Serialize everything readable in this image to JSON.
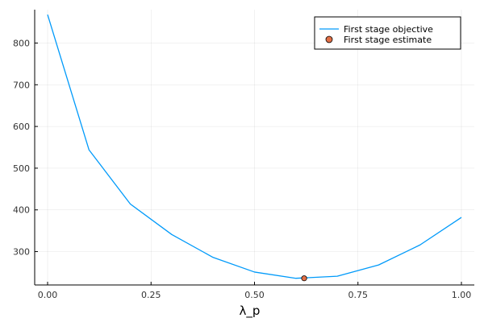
{
  "chart_data": {
    "type": "line",
    "xlabel": "λ_p",
    "ylabel": "",
    "xlim": [
      0.0,
      1.0
    ],
    "ylim": [
      220,
      880
    ],
    "grid": true,
    "legend_position": "top-right",
    "x_ticks": [
      0.0,
      0.25,
      0.5,
      0.75,
      1.0
    ],
    "x_tick_labels": [
      "0.00",
      "0.25",
      "0.50",
      "0.75",
      "1.00"
    ],
    "y_ticks": [
      300,
      400,
      500,
      600,
      700,
      800
    ],
    "y_tick_labels": [
      "300",
      "400",
      "500",
      "600",
      "700",
      "800"
    ],
    "series": [
      {
        "name": "First stage objective",
        "kind": "line",
        "color": "#009AFA",
        "x": [
          0.0,
          0.1,
          0.2,
          0.3,
          0.4,
          0.5,
          0.6,
          0.7,
          0.8,
          0.9,
          1.0
        ],
        "y": [
          868,
          544,
          414,
          341,
          286,
          251,
          236,
          241,
          268,
          316,
          382
        ]
      },
      {
        "name": "First stage estimate",
        "kind": "scatter",
        "color": "#E26F46",
        "x": [
          0.62
        ],
        "y": [
          236
        ]
      }
    ]
  },
  "legend": {
    "line_label": "First stage objective",
    "marker_label": "First stage estimate"
  }
}
